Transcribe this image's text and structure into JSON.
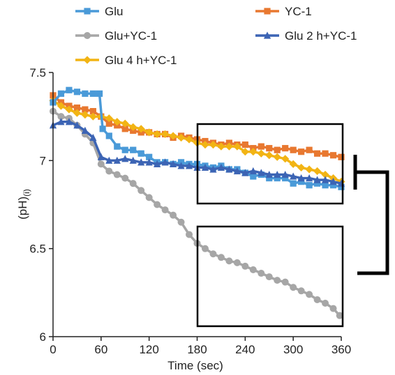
{
  "chart_data": {
    "type": "line",
    "xlabel": "Time (sec)",
    "ylabel_main": "(pH)",
    "ylabel_sub": "(i)",
    "xlim": [
      0,
      360
    ],
    "ylim": [
      6.0,
      7.5
    ],
    "x_ticks": [
      0,
      60,
      120,
      180,
      240,
      300,
      360
    ],
    "y_ticks": [
      6,
      6.5,
      7,
      7.5
    ],
    "x_tick_labels": [
      "0",
      "60",
      "120",
      "180",
      "240",
      "300",
      "360"
    ],
    "y_tick_labels": [
      "6",
      "6.5",
      "7",
      "7.5"
    ],
    "grid": false,
    "legend_position": "top",
    "series": [
      {
        "name": "Glu",
        "color": "#4a9ad8",
        "marker": "square",
        "points": [
          [
            0,
            7.33
          ],
          [
            10,
            7.38
          ],
          [
            20,
            7.4
          ],
          [
            30,
            7.39
          ],
          [
            40,
            7.38
          ],
          [
            50,
            7.38
          ],
          [
            58,
            7.38
          ],
          [
            62,
            7.18
          ],
          [
            70,
            7.14
          ],
          [
            80,
            7.08
          ],
          [
            90,
            7.06
          ],
          [
            100,
            7.06
          ],
          [
            110,
            7.04
          ],
          [
            120,
            7.02
          ],
          [
            130,
            6.99
          ],
          [
            140,
            6.99
          ],
          [
            150,
            6.98
          ],
          [
            160,
            6.99
          ],
          [
            170,
            6.98
          ],
          [
            180,
            6.98
          ],
          [
            190,
            6.97
          ],
          [
            200,
            6.96
          ],
          [
            210,
            6.97
          ],
          [
            220,
            6.95
          ],
          [
            230,
            6.95
          ],
          [
            240,
            6.93
          ],
          [
            250,
            6.91
          ],
          [
            260,
            6.92
          ],
          [
            270,
            6.9
          ],
          [
            280,
            6.9
          ],
          [
            290,
            6.9
          ],
          [
            300,
            6.87
          ],
          [
            310,
            6.88
          ],
          [
            320,
            6.86
          ],
          [
            330,
            6.87
          ],
          [
            340,
            6.86
          ],
          [
            350,
            6.86
          ],
          [
            360,
            6.85
          ]
        ]
      },
      {
        "name": "YC-1",
        "color": "#e87830",
        "marker": "square",
        "points": [
          [
            0,
            7.37
          ],
          [
            10,
            7.33
          ],
          [
            20,
            7.31
          ],
          [
            30,
            7.3
          ],
          [
            40,
            7.29
          ],
          [
            50,
            7.28
          ],
          [
            60,
            7.25
          ],
          [
            70,
            7.21
          ],
          [
            80,
            7.2
          ],
          [
            90,
            7.18
          ],
          [
            100,
            7.17
          ],
          [
            110,
            7.16
          ],
          [
            120,
            7.16
          ],
          [
            130,
            7.15
          ],
          [
            140,
            7.15
          ],
          [
            150,
            7.13
          ],
          [
            160,
            7.14
          ],
          [
            170,
            7.13
          ],
          [
            180,
            7.12
          ],
          [
            190,
            7.11
          ],
          [
            200,
            7.1
          ],
          [
            210,
            7.09
          ],
          [
            220,
            7.1
          ],
          [
            230,
            7.09
          ],
          [
            240,
            7.09
          ],
          [
            250,
            7.07
          ],
          [
            260,
            7.08
          ],
          [
            270,
            7.07
          ],
          [
            280,
            7.06
          ],
          [
            290,
            7.07
          ],
          [
            300,
            7.06
          ],
          [
            310,
            7.05
          ],
          [
            320,
            7.06
          ],
          [
            330,
            7.04
          ],
          [
            340,
            7.04
          ],
          [
            350,
            7.03
          ],
          [
            360,
            7.02
          ]
        ]
      },
      {
        "name": "Glu+YC-1",
        "color": "#a6a6a6",
        "marker": "circle",
        "points": [
          [
            0,
            7.28
          ],
          [
            10,
            7.25
          ],
          [
            20,
            7.24
          ],
          [
            30,
            7.2
          ],
          [
            40,
            7.15
          ],
          [
            50,
            7.1
          ],
          [
            60,
            6.98
          ],
          [
            70,
            6.94
          ],
          [
            80,
            6.92
          ],
          [
            90,
            6.9
          ],
          [
            100,
            6.87
          ],
          [
            110,
            6.83
          ],
          [
            120,
            6.79
          ],
          [
            130,
            6.75
          ],
          [
            140,
            6.72
          ],
          [
            150,
            6.69
          ],
          [
            160,
            6.65
          ],
          [
            170,
            6.58
          ],
          [
            180,
            6.53
          ],
          [
            190,
            6.5
          ],
          [
            200,
            6.47
          ],
          [
            210,
            6.45
          ],
          [
            220,
            6.43
          ],
          [
            230,
            6.42
          ],
          [
            240,
            6.4
          ],
          [
            250,
            6.38
          ],
          [
            260,
            6.36
          ],
          [
            270,
            6.34
          ],
          [
            280,
            6.32
          ],
          [
            290,
            6.31
          ],
          [
            300,
            6.28
          ],
          [
            310,
            6.26
          ],
          [
            320,
            6.24
          ],
          [
            330,
            6.21
          ],
          [
            340,
            6.19
          ],
          [
            350,
            6.16
          ],
          [
            358,
            6.12
          ]
        ]
      },
      {
        "name": "Glu 2 h+YC-1",
        "color": "#3c64b4",
        "marker": "triangle",
        "points": [
          [
            0,
            7.2
          ],
          [
            10,
            7.22
          ],
          [
            20,
            7.22
          ],
          [
            30,
            7.2
          ],
          [
            40,
            7.17
          ],
          [
            50,
            7.13
          ],
          [
            60,
            7.02
          ],
          [
            70,
            7.0
          ],
          [
            80,
            7.0
          ],
          [
            90,
            7.01
          ],
          [
            100,
            7.0
          ],
          [
            110,
            6.99
          ],
          [
            120,
            6.99
          ],
          [
            130,
            6.98
          ],
          [
            140,
            6.99
          ],
          [
            150,
            6.98
          ],
          [
            160,
            6.97
          ],
          [
            170,
            6.97
          ],
          [
            180,
            6.96
          ],
          [
            190,
            6.96
          ],
          [
            200,
            6.95
          ],
          [
            210,
            6.96
          ],
          [
            220,
            6.95
          ],
          [
            230,
            6.94
          ],
          [
            240,
            6.93
          ],
          [
            250,
            6.94
          ],
          [
            260,
            6.93
          ],
          [
            270,
            6.92
          ],
          [
            280,
            6.92
          ],
          [
            290,
            6.92
          ],
          [
            300,
            6.91
          ],
          [
            310,
            6.9
          ],
          [
            320,
            6.9
          ],
          [
            330,
            6.89
          ],
          [
            340,
            6.89
          ],
          [
            350,
            6.88
          ],
          [
            360,
            6.87
          ]
        ]
      },
      {
        "name": "Glu 4 h+YC-1",
        "color": "#f2b414",
        "marker": "diamond",
        "points": [
          [
            0,
            7.34
          ],
          [
            10,
            7.31
          ],
          [
            20,
            7.29
          ],
          [
            30,
            7.27
          ],
          [
            40,
            7.26
          ],
          [
            50,
            7.25
          ],
          [
            60,
            7.25
          ],
          [
            70,
            7.24
          ],
          [
            80,
            7.22
          ],
          [
            90,
            7.21
          ],
          [
            100,
            7.19
          ],
          [
            110,
            7.18
          ],
          [
            120,
            7.16
          ],
          [
            130,
            7.15
          ],
          [
            140,
            7.15
          ],
          [
            150,
            7.14
          ],
          [
            160,
            7.13
          ],
          [
            170,
            7.12
          ],
          [
            180,
            7.1
          ],
          [
            190,
            7.09
          ],
          [
            200,
            7.09
          ],
          [
            210,
            7.08
          ],
          [
            220,
            7.08
          ],
          [
            230,
            7.08
          ],
          [
            240,
            7.05
          ],
          [
            250,
            7.05
          ],
          [
            260,
            7.04
          ],
          [
            270,
            7.03
          ],
          [
            280,
            7.02
          ],
          [
            290,
            7.01
          ],
          [
            300,
            6.98
          ],
          [
            310,
            6.96
          ],
          [
            320,
            6.95
          ],
          [
            330,
            6.94
          ],
          [
            340,
            6.92
          ],
          [
            350,
            6.9
          ],
          [
            360,
            6.88
          ]
        ]
      }
    ]
  }
}
